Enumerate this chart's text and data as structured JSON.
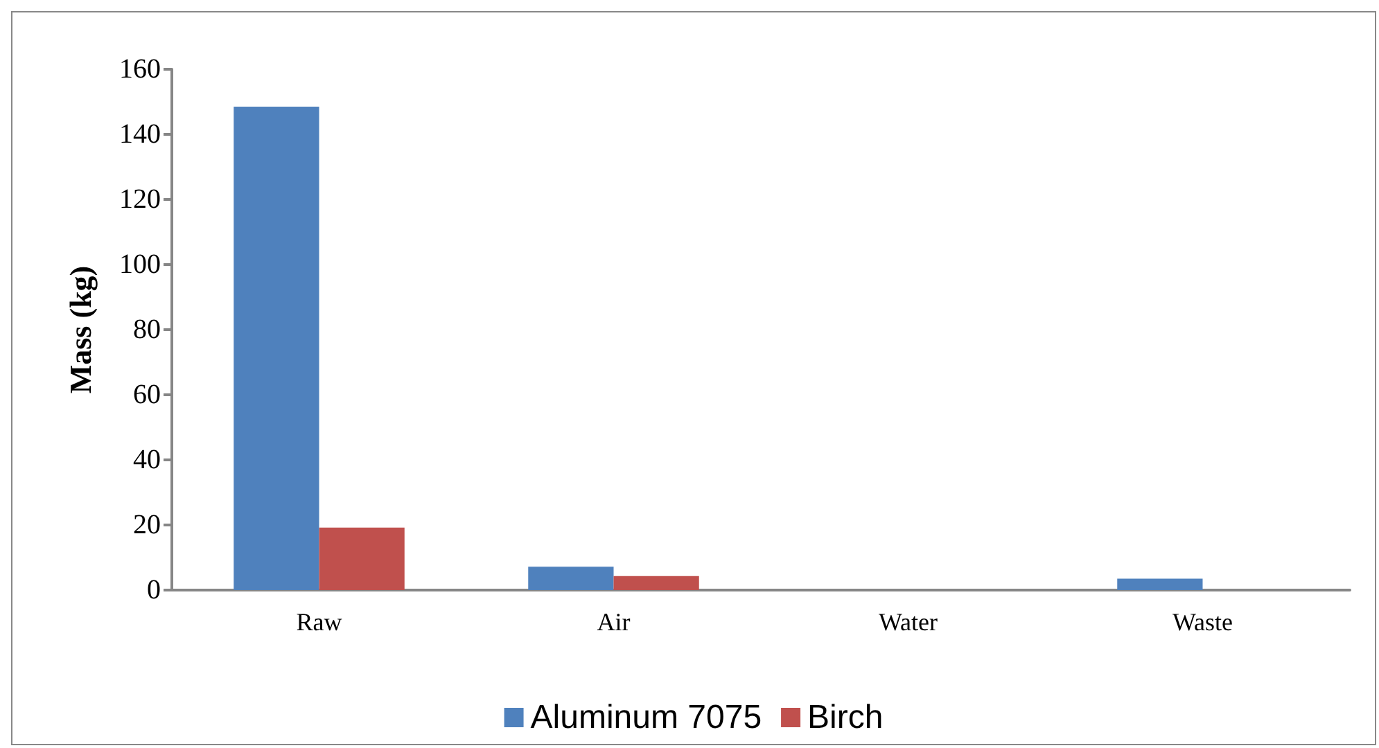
{
  "chart_data": {
    "type": "bar",
    "ylabel": "Mass (kg)",
    "categories": [
      "Raw",
      "Air",
      "Water",
      "Waste"
    ],
    "series": [
      {
        "name": "Aluminum 7075",
        "color": "#4f81bd",
        "values": [
          148.5,
          7.2,
          0,
          3.5
        ]
      },
      {
        "name": "Birch",
        "color": "#c0504d",
        "values": [
          19.2,
          4.3,
          0,
          0
        ]
      }
    ],
    "ylim": [
      0,
      160
    ],
    "yticks": [
      0,
      20,
      40,
      60,
      80,
      100,
      120,
      140,
      160
    ],
    "grid": false,
    "legend": "bottom"
  }
}
